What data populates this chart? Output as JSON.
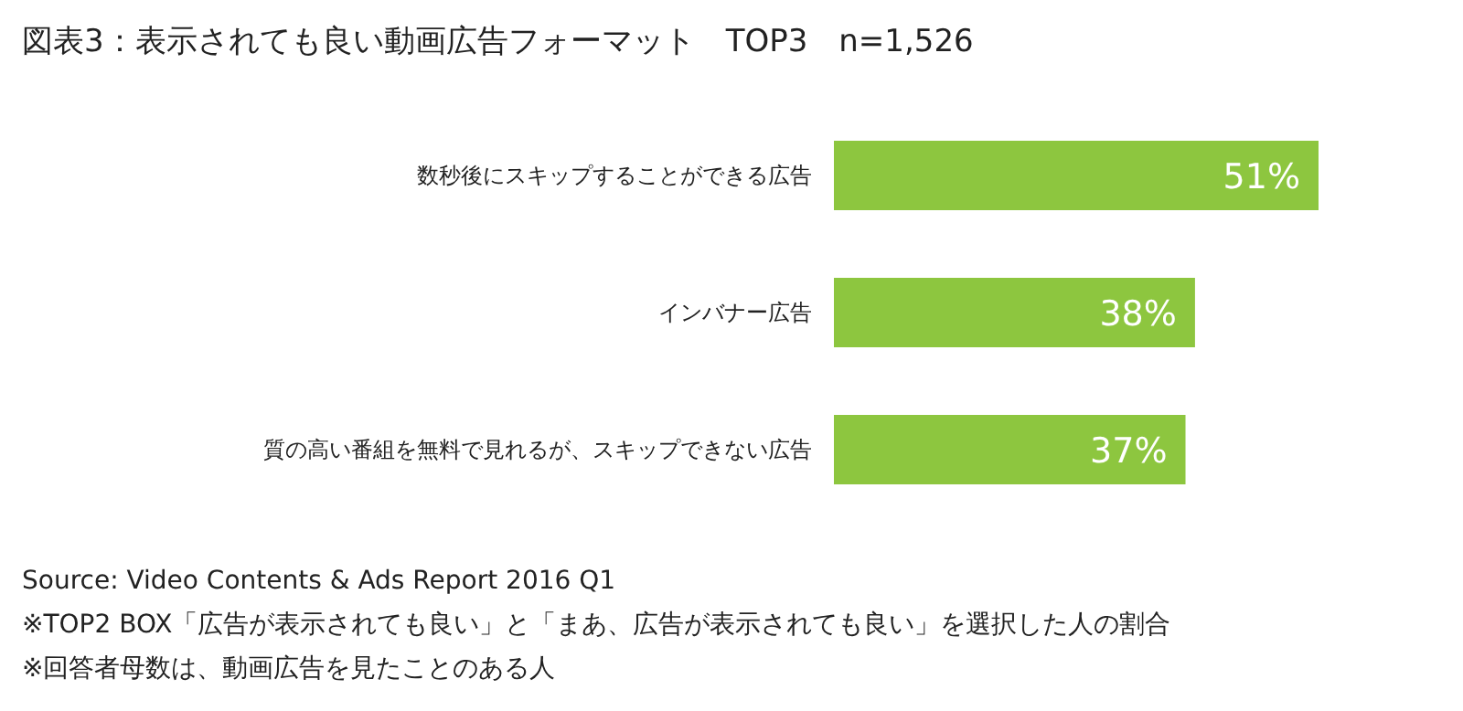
{
  "chart_data": {
    "type": "bar",
    "orientation": "horizontal",
    "title": "図表3：表示されても良い動画広告フォーマット　TOP3　n=1,526",
    "categories": [
      "数秒後にスキップすることができる広告",
      "インバナー広告",
      "質の高い番組を無料で見れるが、スキップできない広告"
    ],
    "values": [
      51,
      38,
      37
    ],
    "value_labels": [
      "51%",
      "38%",
      "37%"
    ],
    "color": "#8dc63f",
    "annotations": [
      "Source: Video Contents & Ads Report 2016 Q1",
      "※TOP2 BOX「広告が表示されても良い」と「まあ、広告が表示されても良い」を選択した人の割合",
      "※回答者母数は、動画広告を見たことのある人"
    ]
  }
}
